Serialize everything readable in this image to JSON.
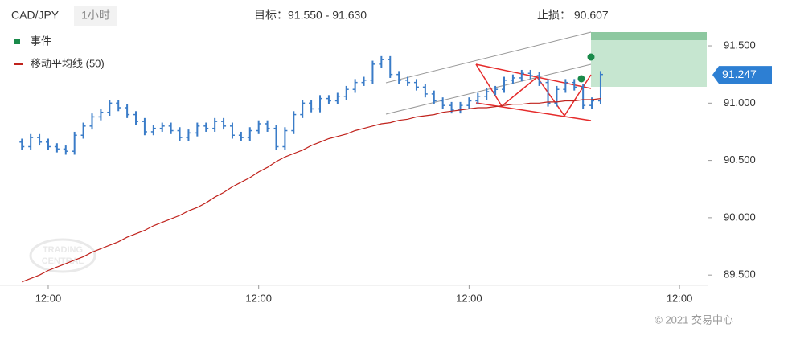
{
  "header": {
    "symbol": "CAD/JPY",
    "interval": "1小时",
    "target": "目标：91.550 - 91.630",
    "stop": "止损：  90.607"
  },
  "footer": "© 2021 交易中心",
  "watermark": [
    "TRADING",
    "CENTRAL"
  ],
  "chart_data": {
    "type": "ohlc",
    "legend": {
      "events": "事件",
      "ma": "移动平均线 (50)"
    },
    "xlim": [
      -2.5,
      78.2
    ],
    "xticks": [
      {
        "value": 3,
        "label": "12:00"
      },
      {
        "value": 27,
        "label": "12:00"
      },
      {
        "value": 51,
        "label": "12:00"
      },
      {
        "value": 75,
        "label": "12:00"
      }
    ],
    "ylim": [
      89.41,
      91.9
    ],
    "yticks": [
      {
        "value": 91.5,
        "label": "91.500"
      },
      {
        "value": 91,
        "label": "91.000"
      },
      {
        "value": 90.5,
        "label": "90.500"
      },
      {
        "value": 90,
        "label": "90.000"
      },
      {
        "value": 89.5,
        "label": "89.500"
      }
    ],
    "current_price": {
      "value": 91.247,
      "label": "91.247"
    },
    "color": "#3a7cc8",
    "ohlc": [
      [
        90.66,
        90.69,
        90.59,
        90.62
      ],
      [
        90.62,
        90.73,
        90.59,
        90.7
      ],
      [
        90.7,
        90.73,
        90.63,
        90.66
      ],
      [
        90.66,
        90.69,
        90.59,
        90.62
      ],
      [
        90.62,
        90.65,
        90.57,
        90.6
      ],
      [
        90.6,
        90.63,
        90.55,
        90.58
      ],
      [
        90.58,
        90.75,
        90.55,
        90.72
      ],
      [
        90.72,
        90.83,
        90.69,
        90.8
      ],
      [
        90.8,
        90.91,
        90.77,
        90.88
      ],
      [
        90.88,
        90.95,
        90.85,
        90.92
      ],
      [
        90.92,
        91.03,
        90.89,
        91.0
      ],
      [
        91.0,
        91.03,
        90.93,
        90.96
      ],
      [
        90.96,
        90.99,
        90.87,
        90.9
      ],
      [
        90.9,
        90.93,
        90.81,
        90.84
      ],
      [
        90.84,
        90.87,
        90.72,
        90.75
      ],
      [
        90.75,
        90.81,
        90.72,
        90.78
      ],
      [
        90.78,
        90.83,
        90.75,
        90.8
      ],
      [
        90.8,
        90.83,
        90.73,
        90.76
      ],
      [
        90.76,
        90.79,
        90.67,
        90.7
      ],
      [
        90.7,
        90.77,
        90.67,
        90.74
      ],
      [
        90.74,
        90.83,
        90.71,
        90.8
      ],
      [
        90.8,
        90.83,
        90.75,
        90.78
      ],
      [
        90.78,
        90.87,
        90.75,
        90.84
      ],
      [
        90.84,
        90.87,
        90.77,
        90.8
      ],
      [
        90.8,
        90.83,
        90.69,
        90.72
      ],
      [
        90.72,
        90.75,
        90.67,
        90.7
      ],
      [
        90.7,
        90.79,
        90.67,
        90.76
      ],
      [
        90.76,
        90.85,
        90.73,
        90.82
      ],
      [
        90.82,
        90.85,
        90.75,
        90.78
      ],
      [
        90.78,
        90.81,
        90.59,
        90.62
      ],
      [
        90.62,
        90.79,
        90.59,
        90.76
      ],
      [
        90.76,
        90.93,
        90.73,
        90.9
      ],
      [
        90.9,
        91.03,
        90.87,
        91.0
      ],
      [
        91.0,
        91.03,
        90.92,
        90.95
      ],
      [
        90.95,
        91.07,
        90.92,
        91.04
      ],
      [
        91.04,
        91.07,
        90.99,
        91.02
      ],
      [
        91.02,
        91.09,
        90.99,
        91.06
      ],
      [
        91.06,
        91.15,
        91.03,
        91.12
      ],
      [
        91.12,
        91.21,
        91.09,
        91.18
      ],
      [
        91.18,
        91.23,
        91.15,
        91.2
      ],
      [
        91.2,
        91.37,
        91.17,
        91.34
      ],
      [
        91.34,
        91.41,
        91.31,
        91.38
      ],
      [
        91.38,
        91.41,
        91.22,
        91.25
      ],
      [
        91.25,
        91.28,
        91.17,
        91.2
      ],
      [
        91.2,
        91.23,
        91.15,
        91.18
      ],
      [
        91.18,
        91.21,
        91.11,
        91.14
      ],
      [
        91.14,
        91.17,
        91.05,
        91.08
      ],
      [
        91.08,
        91.11,
        90.99,
        91.02
      ],
      [
        91.02,
        91.05,
        90.95,
        90.98
      ],
      [
        90.98,
        91.01,
        90.91,
        90.94
      ],
      [
        90.94,
        91.01,
        90.91,
        90.98
      ],
      [
        90.98,
        91.05,
        90.95,
        91.02
      ],
      [
        91.02,
        91.09,
        90.99,
        91.06
      ],
      [
        91.06,
        91.13,
        91.03,
        91.1
      ],
      [
        91.1,
        91.15,
        91.07,
        91.12
      ],
      [
        91.12,
        91.23,
        91.09,
        91.2
      ],
      [
        91.2,
        91.25,
        91.17,
        91.22
      ],
      [
        91.22,
        91.29,
        91.19,
        91.26
      ],
      [
        91.26,
        91.29,
        91.21,
        91.24
      ],
      [
        91.24,
        91.27,
        91.15,
        91.18
      ],
      [
        91.18,
        91.21,
        90.97,
        91.0
      ],
      [
        91.0,
        91.15,
        90.97,
        91.12
      ],
      [
        91.12,
        91.21,
        91.09,
        91.18
      ],
      [
        91.18,
        91.21,
        91.11,
        91.14
      ],
      [
        91.14,
        91.17,
        90.95,
        90.98
      ],
      [
        90.98,
        91.05,
        90.95,
        91.02
      ],
      [
        91.02,
        91.28,
        90.99,
        91.25
      ]
    ],
    "ma": {
      "color": "#c0221c",
      "values": [
        89.44,
        89.47,
        89.5,
        89.54,
        89.57,
        89.6,
        89.63,
        89.66,
        89.7,
        89.73,
        89.76,
        89.79,
        89.83,
        89.86,
        89.89,
        89.93,
        89.96,
        89.99,
        90.02,
        90.06,
        90.09,
        90.13,
        90.18,
        90.22,
        90.27,
        90.31,
        90.35,
        90.4,
        90.44,
        90.49,
        90.53,
        90.56,
        90.59,
        90.63,
        90.66,
        90.69,
        90.71,
        90.73,
        90.76,
        90.78,
        90.8,
        90.82,
        90.83,
        90.85,
        90.86,
        90.88,
        90.89,
        90.9,
        90.92,
        90.93,
        90.94,
        90.95,
        90.96,
        90.96,
        90.97,
        90.98,
        90.99,
        90.99,
        91.0,
        91.0,
        91.01,
        91.01,
        91.02,
        91.02,
        91.03,
        91.03,
        91.04
      ]
    }
  }
}
